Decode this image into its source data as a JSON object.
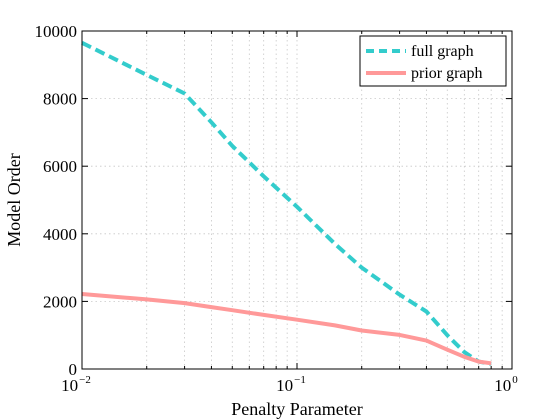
{
  "chart_data": {
    "type": "line",
    "title": "",
    "xlabel": "Penalty Parameter",
    "ylabel": "Model Order",
    "x_scale": "log",
    "xlim": [
      0.01,
      1
    ],
    "ylim": [
      0,
      10000
    ],
    "x_ticks": [
      {
        "value": 0.01,
        "base": "10",
        "exp": "−2"
      },
      {
        "value": 0.1,
        "base": "10",
        "exp": "−1"
      },
      {
        "value": 1,
        "base": "10",
        "exp": "0"
      }
    ],
    "y_ticks": [
      {
        "value": 0,
        "label": "0"
      },
      {
        "value": 2000,
        "label": "2000"
      },
      {
        "value": 4000,
        "label": "4000"
      },
      {
        "value": 6000,
        "label": "6000"
      },
      {
        "value": 8000,
        "label": "8000"
      },
      {
        "value": 10000,
        "label": "10000"
      }
    ],
    "grid": true,
    "legend_position": "top-right",
    "series": [
      {
        "name": "full graph",
        "color": "#33cccc",
        "style": "dashed",
        "x": [
          0.01,
          0.02,
          0.03,
          0.04,
          0.05,
          0.07,
          0.1,
          0.15,
          0.2,
          0.3,
          0.4,
          0.5,
          0.6,
          0.7,
          0.8
        ],
        "y": [
          9650,
          8700,
          8150,
          7300,
          6600,
          5700,
          4800,
          3700,
          3000,
          2200,
          1700,
          1000,
          500,
          220,
          150
        ]
      },
      {
        "name": "prior graph",
        "color": "#ff9999",
        "style": "solid",
        "x": [
          0.01,
          0.02,
          0.03,
          0.04,
          0.05,
          0.07,
          0.1,
          0.15,
          0.2,
          0.3,
          0.4,
          0.5,
          0.6,
          0.7,
          0.8
        ],
        "y": [
          2220,
          2060,
          1950,
          1830,
          1740,
          1600,
          1460,
          1290,
          1140,
          1010,
          840,
          570,
          360,
          220,
          170
        ]
      }
    ]
  }
}
